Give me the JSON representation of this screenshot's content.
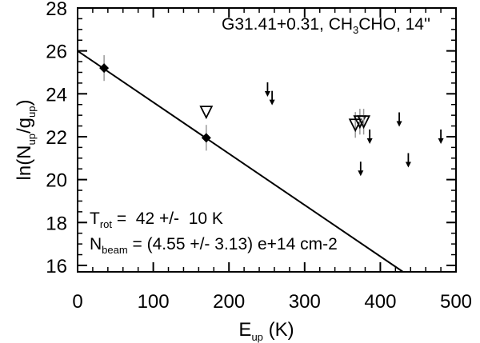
{
  "chart_data": {
    "type": "scatter",
    "title": "",
    "annotation_title": {
      "source": "G31.41+0.31",
      "molecule_pre": "CH",
      "molecule_sub": "3",
      "molecule_post": "CHO",
      "beam": "14''",
      "sep": ", "
    },
    "xlabel": {
      "main": "E",
      "sub": "up",
      "unit": " (K)"
    },
    "ylabel": {
      "pre": "ln(N",
      "sub1": "up",
      "mid": "/g",
      "sub2": "up",
      "post": ")"
    },
    "xlim": [
      0,
      500
    ],
    "ylim": [
      15.7,
      28
    ],
    "xticks": [
      0,
      100,
      200,
      300,
      400,
      500
    ],
    "yticks": [
      16,
      18,
      20,
      22,
      24,
      26,
      28
    ],
    "fit_line": {
      "x": [
        0,
        430
      ],
      "y": [
        26.0,
        15.7
      ]
    },
    "detections": [
      {
        "x": 35,
        "y": 25.2,
        "err": 0.6
      },
      {
        "x": 170,
        "y": 21.95,
        "err": 0.6
      }
    ],
    "blended": [
      {
        "x": 170,
        "y": 23.15,
        "err": 0.0
      },
      {
        "x": 367,
        "y": 22.55,
        "err": 0.6
      },
      {
        "x": 373,
        "y": 22.7,
        "err": 0.6
      },
      {
        "x": 378,
        "y": 22.7,
        "err": 0.6
      }
    ],
    "upper_limits": [
      {
        "x": 251,
        "y": 24.2
      },
      {
        "x": 257,
        "y": 23.8
      },
      {
        "x": 374,
        "y": 20.5
      },
      {
        "x": 386,
        "y": 22.0
      },
      {
        "x": 425,
        "y": 22.8
      },
      {
        "x": 437,
        "y": 20.9
      },
      {
        "x": 480,
        "y": 22.0
      }
    ],
    "results": {
      "trot_label": "T",
      "trot_sub": "rot",
      "trot_text": " =  42 +/-  10 K",
      "nbeam_label": "N",
      "nbeam_sub": "beam",
      "nbeam_text": " = (4.55 +/- 3.13) e+14 cm-2"
    },
    "grid": false,
    "legend": "none"
  }
}
